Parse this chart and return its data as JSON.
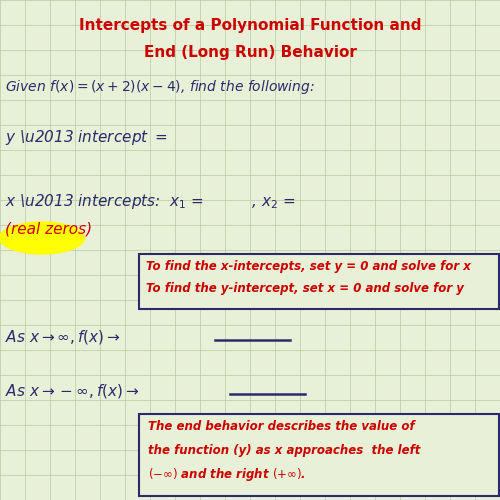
{
  "title_line1": "Intercepts of a Polynomial Function and",
  "title_line2": "End (Long Run) Behavior",
  "title_color": "#cc0000",
  "bg_color": "#e8f0d8",
  "grid_color": "#b8c8a0",
  "main_text_color": "#2b2b6b",
  "red_text_color": "#cc0000",
  "hint_box1_line1": "To find the x-intercepts, set y = 0 and solve for x",
  "hint_box1_line2": "To find the y-intercept, set x = 0 and solve for y",
  "hint_box2_line1": "The end behavior describes the value of",
  "hint_box2_line2": "the function (y) as x approaches  the left",
  "hint_box2_line3": "($-\\infty$) and the right ($+\\infty$)."
}
